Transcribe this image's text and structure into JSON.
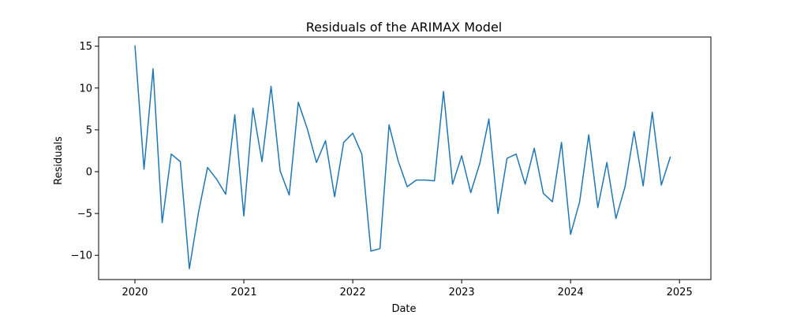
{
  "chart_data": {
    "type": "line",
    "title": "Residuals of the ARIMAX Model",
    "xlabel": "Date",
    "ylabel": "Residuals",
    "x_ticks": [
      2020,
      2021,
      2022,
      2023,
      2024,
      2025
    ],
    "y_ticks": [
      -10,
      -5,
      0,
      5,
      10,
      15
    ],
    "xlim": [
      "2019-09-01",
      "2025-04-15"
    ],
    "ylim": [
      -12.9,
      16.1
    ],
    "grid": false,
    "legend": "none",
    "line_color": "#1f77b4",
    "series": [
      {
        "x": [
          "2020-01",
          "2020-02",
          "2020-03",
          "2020-04",
          "2020-05",
          "2020-06",
          "2020-07",
          "2020-08",
          "2020-09",
          "2020-10",
          "2020-11",
          "2020-12",
          "2021-01",
          "2021-02",
          "2021-03",
          "2021-04",
          "2021-05",
          "2021-06",
          "2021-07",
          "2021-08",
          "2021-09",
          "2021-10",
          "2021-11",
          "2021-12",
          "2022-01",
          "2022-02",
          "2022-03",
          "2022-04",
          "2022-05",
          "2022-06",
          "2022-07",
          "2022-08",
          "2022-09",
          "2022-10",
          "2022-11",
          "2022-12",
          "2023-01",
          "2023-02",
          "2023-03",
          "2023-04",
          "2023-05",
          "2023-06",
          "2023-07",
          "2023-08",
          "2023-09",
          "2023-10",
          "2023-11",
          "2023-12",
          "2024-01",
          "2024-02",
          "2024-03",
          "2024-04",
          "2024-05",
          "2024-06",
          "2024-07",
          "2024-08",
          "2024-09",
          "2024-10",
          "2024-11",
          "2024-12"
        ],
        "values": [
          15.1,
          0.3,
          12.3,
          -6.1,
          2.1,
          1.2,
          -11.6,
          -4.9,
          0.5,
          -0.9,
          -2.7,
          6.8,
          -5.3,
          7.6,
          1.2,
          10.2,
          0.1,
          -2.8,
          8.3,
          5.1,
          1.1,
          3.7,
          -3.0,
          3.5,
          4.6,
          2.1,
          -9.5,
          -9.2,
          5.6,
          1.3,
          -1.8,
          -1.0,
          -1.0,
          -1.1,
          9.6,
          -1.5,
          1.9,
          -2.5,
          1.0,
          6.3,
          -5.0,
          1.6,
          2.1,
          -1.5,
          2.8,
          -2.6,
          -3.6,
          3.5,
          -7.5,
          -3.6,
          4.4,
          -4.3,
          1.1,
          -5.6,
          -1.8,
          4.8,
          -1.7,
          7.1,
          -1.6,
          1.8
        ]
      }
    ]
  }
}
